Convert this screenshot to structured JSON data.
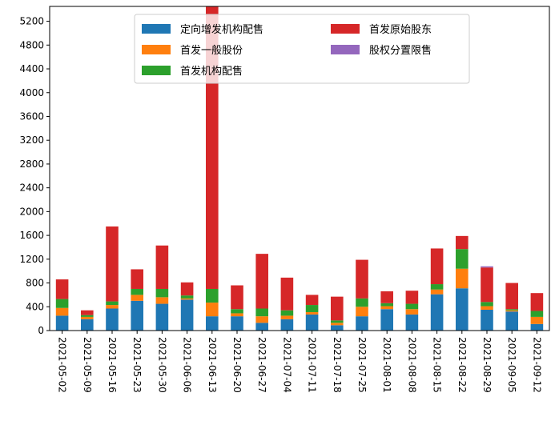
{
  "chart_data": {
    "type": "bar",
    "stacked": true,
    "categories": [
      "2021-05-02",
      "2021-05-09",
      "2021-05-16",
      "2021-05-23",
      "2021-05-30",
      "2021-06-06",
      "2021-06-13",
      "2021-06-20",
      "2021-06-27",
      "2021-07-04",
      "2021-07-11",
      "2021-07-18",
      "2021-07-25",
      "2021-08-01",
      "2021-08-08",
      "2021-08-15",
      "2021-08-22",
      "2021-08-29",
      "2021-09-05",
      "2021-09-12"
    ],
    "series": [
      {
        "name": "定向增发机构配售",
        "color": "#1f77b4",
        "values": [
          250,
          190,
          370,
          500,
          450,
          520,
          240,
          240,
          130,
          190,
          270,
          90,
          240,
          360,
          270,
          610,
          710,
          350,
          320,
          110
        ]
      },
      {
        "name": "首发一般股份",
        "color": "#ff7f0e",
        "values": [
          130,
          40,
          60,
          100,
          110,
          20,
          230,
          50,
          110,
          60,
          40,
          40,
          160,
          50,
          90,
          80,
          330,
          60,
          20,
          120
        ]
      },
      {
        "name": "首发机构配售",
        "color": "#2ca02c",
        "values": [
          150,
          30,
          60,
          100,
          140,
          50,
          230,
          70,
          130,
          90,
          120,
          40,
          140,
          50,
          90,
          90,
          330,
          70,
          20,
          100
        ]
      },
      {
        "name": "首发原始股东",
        "color": "#d62728",
        "values": [
          330,
          80,
          1260,
          330,
          730,
          220,
          4750,
          400,
          920,
          550,
          170,
          400,
          650,
          200,
          220,
          600,
          220,
          580,
          440,
          300
        ]
      },
      {
        "name": "股权分置限售",
        "color": "#9467bd",
        "values": [
          0,
          0,
          0,
          0,
          0,
          0,
          0,
          0,
          0,
          0,
          0,
          0,
          0,
          0,
          0,
          0,
          0,
          20,
          0,
          0
        ]
      }
    ],
    "y_ticks": [
      0,
      400,
      800,
      1200,
      1600,
      2000,
      2400,
      2800,
      3200,
      3600,
      4000,
      4400,
      4800,
      5200
    ],
    "ylim": [
      0,
      5450
    ],
    "title": "",
    "xlabel": "",
    "ylabel": "",
    "grid": false,
    "legend_placement": "top-center"
  }
}
